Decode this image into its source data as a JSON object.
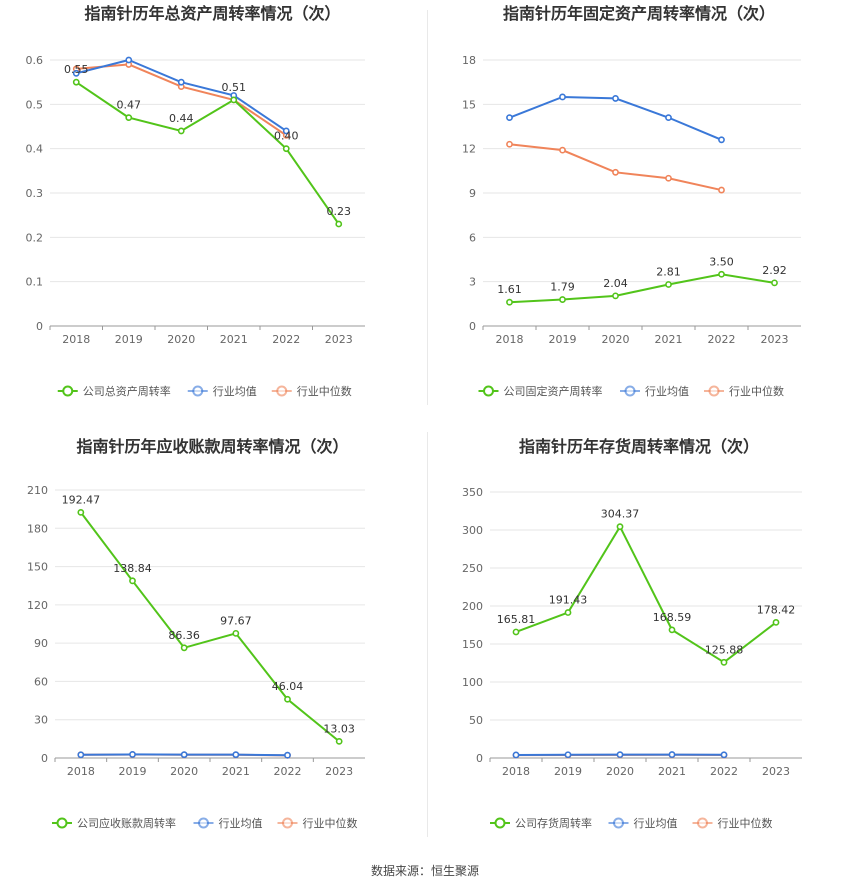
{
  "source": "数据来源：恒生聚源",
  "colors": {
    "company": "#52c41a",
    "avg": "#3a78d8",
    "median": "#f0845a"
  },
  "legend": {
    "avg": "行业均值",
    "median": "行业中位数"
  },
  "chart_data": [
    {
      "type": "line",
      "title": "指南针历年总资产周转率情况（次）",
      "categories": [
        "2018",
        "2019",
        "2020",
        "2021",
        "2022",
        "2023"
      ],
      "ylim": [
        0,
        0.6
      ],
      "yticks": [
        0,
        0.1,
        0.2,
        0.3,
        0.4,
        0.5,
        0.6
      ],
      "ytick_labels": [
        "0",
        "0.1",
        "0.2",
        "0.3",
        "0.4",
        "0.5",
        "0.6"
      ],
      "series": [
        {
          "name": "公司总资产周转率",
          "role": "company",
          "values": [
            0.55,
            0.47,
            0.44,
            0.51,
            0.4,
            0.23
          ],
          "labels": [
            "0.55",
            "0.47",
            "0.44",
            "0.51",
            "0.40",
            "0.23"
          ]
        },
        {
          "name": "行业均值",
          "role": "avg",
          "values": [
            0.57,
            0.6,
            0.55,
            0.52,
            0.44,
            null
          ]
        },
        {
          "name": "行业中位数",
          "role": "median",
          "values": [
            0.58,
            0.59,
            0.54,
            0.51,
            0.43,
            null
          ]
        }
      ]
    },
    {
      "type": "line",
      "title": "指南针历年固定资产周转率情况（次）",
      "categories": [
        "2018",
        "2019",
        "2020",
        "2021",
        "2022",
        "2023"
      ],
      "ylim": [
        0,
        18
      ],
      "yticks": [
        0,
        3,
        6,
        9,
        12,
        15,
        18
      ],
      "ytick_labels": [
        "0",
        "3",
        "6",
        "9",
        "12",
        "15",
        "18"
      ],
      "series": [
        {
          "name": "公司固定资产周转率",
          "role": "company",
          "values": [
            1.61,
            1.79,
            2.04,
            2.81,
            3.5,
            2.92
          ],
          "labels": [
            "1.61",
            "1.79",
            "2.04",
            "2.81",
            "3.50",
            "2.92"
          ]
        },
        {
          "name": "行业均值",
          "role": "avg",
          "values": [
            14.1,
            15.5,
            15.4,
            14.1,
            12.6,
            null
          ]
        },
        {
          "name": "行业中位数",
          "role": "median",
          "values": [
            12.3,
            11.9,
            10.4,
            10.0,
            9.2,
            null
          ]
        }
      ]
    },
    {
      "type": "line",
      "title": "指南针历年应收账款周转率情况（次）",
      "categories": [
        "2018",
        "2019",
        "2020",
        "2021",
        "2022",
        "2023"
      ],
      "ylim": [
        0,
        210
      ],
      "yticks": [
        0,
        30,
        60,
        90,
        120,
        150,
        180,
        210
      ],
      "ytick_labels": [
        "0",
        "30",
        "60",
        "90",
        "120",
        "150",
        "180",
        "210"
      ],
      "series": [
        {
          "name": "公司应收账款周转率",
          "role": "company",
          "values": [
            192.47,
            138.84,
            86.36,
            97.67,
            46.04,
            13.03
          ],
          "labels": [
            "192.47",
            "138.84",
            "86.36",
            "97.67",
            "46.04",
            "13.03"
          ]
        },
        {
          "name": "行业均值",
          "role": "avg",
          "values": [
            2.5,
            2.8,
            2.6,
            2.6,
            2.2,
            null
          ]
        },
        {
          "name": "行业中位数",
          "role": "median",
          "values": [
            2.5,
            2.7,
            2.5,
            2.5,
            2.1,
            null
          ]
        }
      ]
    },
    {
      "type": "line",
      "title": "指南针历年存货周转率情况（次）",
      "categories": [
        "2018",
        "2019",
        "2020",
        "2021",
        "2022",
        "2023"
      ],
      "ylim": [
        0,
        350
      ],
      "yticks": [
        0,
        50,
        100,
        150,
        200,
        250,
        300,
        350
      ],
      "ytick_labels": [
        "0",
        "50",
        "100",
        "150",
        "200",
        "250",
        "300",
        "350"
      ],
      "series": [
        {
          "name": "公司存货周转率",
          "role": "company",
          "values": [
            165.81,
            191.43,
            304.37,
            168.59,
            125.88,
            178.42
          ],
          "labels": [
            "165.81",
            "191.43",
            "304.37",
            "168.59",
            "125.88",
            "178.42"
          ]
        },
        {
          "name": "行业均值",
          "role": "avg",
          "values": [
            4.0,
            4.3,
            4.4,
            4.5,
            4.2,
            null
          ]
        },
        {
          "name": "行业中位数",
          "role": "median",
          "values": [
            3.8,
            4.0,
            4.1,
            4.2,
            3.9,
            null
          ]
        }
      ]
    }
  ]
}
